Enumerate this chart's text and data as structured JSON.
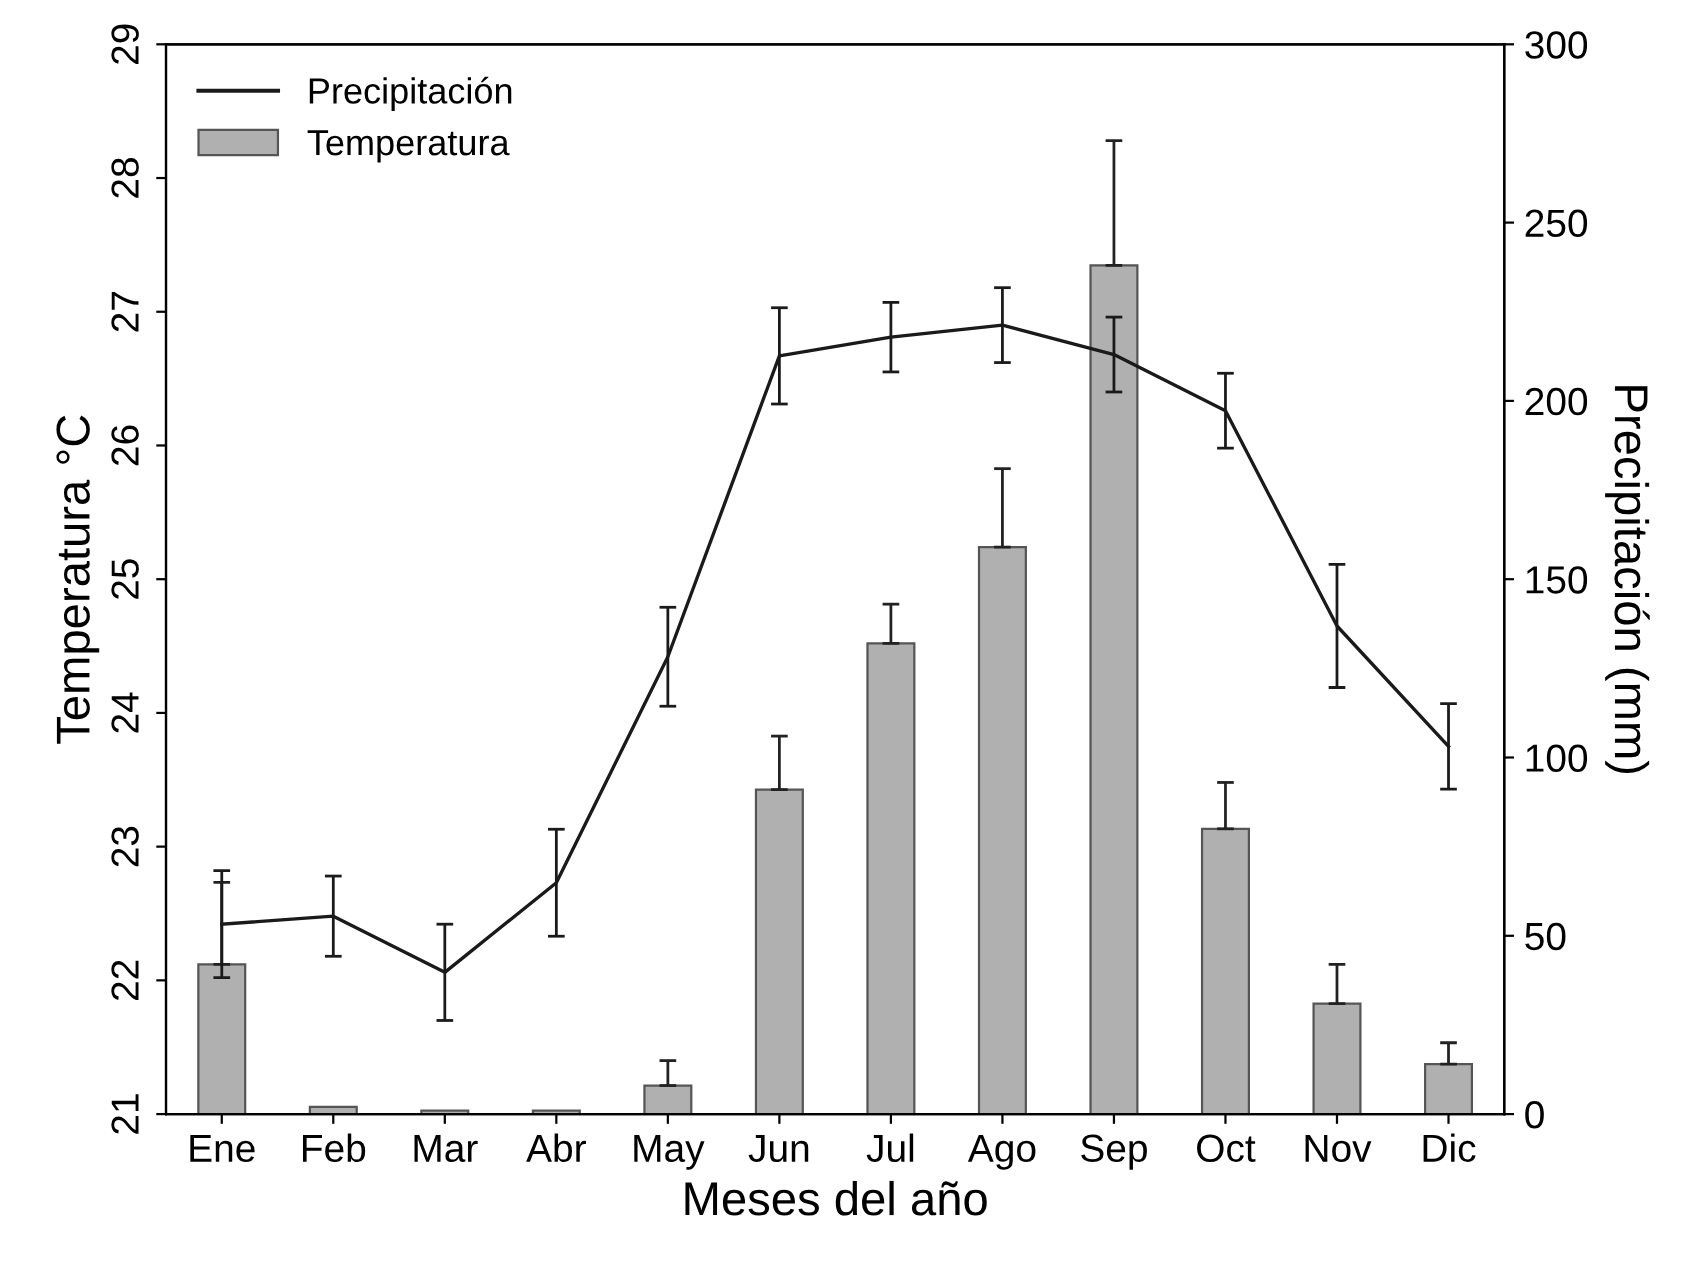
{
  "chart_data": {
    "type": "bar",
    "xlabel": "Meses del año",
    "ylabel": "Temperatura °C",
    "y2label": "Precipitación (mm)",
    "categories": [
      "Ene",
      "Feb",
      "Mar",
      "Abr",
      "May",
      "Jun",
      "Jul",
      "Ago",
      "Sep",
      "Oct",
      "Nov",
      "Dic"
    ],
    "series": [
      {
        "name": "Precipitación",
        "type": "line",
        "color": "#1a1a1a",
        "values": [
          22.42,
          22.48,
          22.06,
          22.73,
          24.42,
          26.67,
          26.81,
          26.9,
          26.68,
          26.26,
          24.65,
          23.75
        ],
        "errors": [
          0.4,
          0.3,
          0.36,
          0.4,
          0.37,
          0.36,
          0.26,
          0.28,
          0.28,
          0.28,
          0.46,
          0.32
        ]
      },
      {
        "name": "Temperatura",
        "axis": "y2",
        "color": "#b0b0b0",
        "values": [
          42,
          2,
          1,
          1,
          8,
          91,
          132,
          159,
          238,
          80,
          31,
          14
        ],
        "errors": [
          23,
          null,
          null,
          null,
          7,
          15,
          11,
          22,
          35,
          13,
          11,
          6
        ]
      }
    ],
    "ylim": [
      21,
      29
    ],
    "yticks": [
      21,
      22,
      23,
      24,
      25,
      26,
      27,
      28,
      29
    ],
    "y2lim": [
      0,
      300
    ],
    "y2ticks": [
      0,
      50,
      100,
      150,
      200,
      250,
      300
    ],
    "legend": "top left",
    "grid": false,
    "marker": "none",
    "line_style": "solid"
  }
}
